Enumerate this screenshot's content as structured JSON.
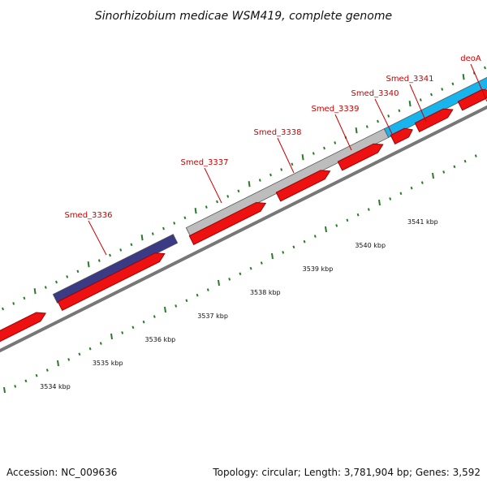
{
  "title": "Sinorhizobium medicae WSM419, complete genome",
  "footer": {
    "accession": "Accession: NC_009636",
    "topology": "Topology: circular; Length: 3,781,904 bp; Genes: 3,592"
  },
  "colors": {
    "gene_red": "#ee1111",
    "cds_navy": "#3a3a85",
    "cds_gray": "#bdbdbd",
    "cds_cyan": "#18b4ee",
    "tick_green": "#2a7a2a",
    "label_red": "#cc0000",
    "backbone": "#777777"
  },
  "genes": [
    {
      "name": "Smed_3336",
      "feature_color": "cds_navy"
    },
    {
      "name": "Smed_3337",
      "feature_color": "cds_gray"
    },
    {
      "name": "Smed_3338",
      "feature_color": "cds_gray"
    },
    {
      "name": "Smed_3339",
      "feature_color": "cds_gray"
    },
    {
      "name": "Smed_3340",
      "feature_color": "cds_cyan"
    },
    {
      "name": "Smed_3341",
      "feature_color": "cds_cyan"
    },
    {
      "name": "deoA",
      "feature_color": "cds_cyan"
    }
  ],
  "scale_labels": [
    "3534 kbp",
    "3535 kbp",
    "3536 kbp",
    "3537 kbp",
    "3538 kbp",
    "3539 kbp",
    "3540 kbp",
    "3541 kbp"
  ]
}
